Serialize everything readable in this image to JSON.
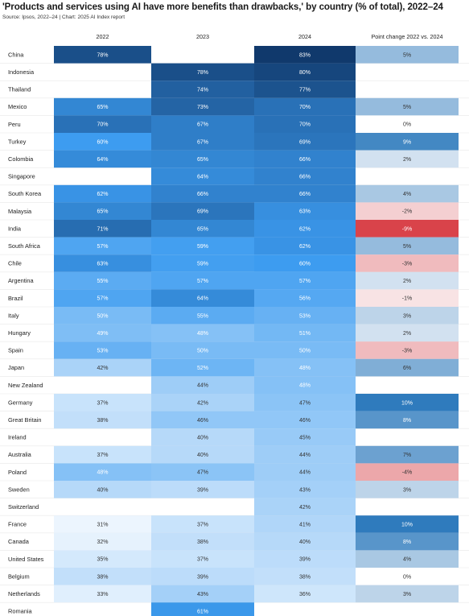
{
  "header": {
    "title": "'Products and services using AI have more benefits than drawbacks,' by country (% of total), 2022–24",
    "source": "Source: Ipsos, 2022–24 | Chart: 2025 AI Index report"
  },
  "chart_data": {
    "type": "heatmap",
    "title": "'Products and services using AI have more benefits than drawbacks,' by country (% of total), 2022–24",
    "columns": [
      "2022",
      "2023",
      "2024",
      "Point change 2022 vs. 2024"
    ],
    "unit": "%",
    "rows": [
      {
        "country": "China",
        "y2022": 78,
        "y2023": null,
        "y2024": 83,
        "change": 5
      },
      {
        "country": "Indonesia",
        "y2022": null,
        "y2023": 78,
        "y2024": 80,
        "change": null
      },
      {
        "country": "Thailand",
        "y2022": null,
        "y2023": 74,
        "y2024": 77,
        "change": null
      },
      {
        "country": "Mexico",
        "y2022": 65,
        "y2023": 73,
        "y2024": 70,
        "change": 5
      },
      {
        "country": "Peru",
        "y2022": 70,
        "y2023": 67,
        "y2024": 70,
        "change": 0
      },
      {
        "country": "Turkey",
        "y2022": 60,
        "y2023": 67,
        "y2024": 69,
        "change": 9
      },
      {
        "country": "Colombia",
        "y2022": 64,
        "y2023": 65,
        "y2024": 66,
        "change": 2
      },
      {
        "country": "Singapore",
        "y2022": null,
        "y2023": 64,
        "y2024": 66,
        "change": null
      },
      {
        "country": "South Korea",
        "y2022": 62,
        "y2023": 66,
        "y2024": 66,
        "change": 4
      },
      {
        "country": "Malaysia",
        "y2022": 65,
        "y2023": 69,
        "y2024": 63,
        "change": -2
      },
      {
        "country": "India",
        "y2022": 71,
        "y2023": 65,
        "y2024": 62,
        "change": -9
      },
      {
        "country": "South Africa",
        "y2022": 57,
        "y2023": 59,
        "y2024": 62,
        "change": 5
      },
      {
        "country": "Chile",
        "y2022": 63,
        "y2023": 59,
        "y2024": 60,
        "change": -3
      },
      {
        "country": "Argentina",
        "y2022": 55,
        "y2023": 57,
        "y2024": 57,
        "change": 2
      },
      {
        "country": "Brazil",
        "y2022": 57,
        "y2023": 64,
        "y2024": 56,
        "change": -1
      },
      {
        "country": "Italy",
        "y2022": 50,
        "y2023": 55,
        "y2024": 53,
        "change": 3
      },
      {
        "country": "Hungary",
        "y2022": 49,
        "y2023": 48,
        "y2024": 51,
        "change": 2
      },
      {
        "country": "Spain",
        "y2022": 53,
        "y2023": 50,
        "y2024": 50,
        "change": -3
      },
      {
        "country": "Japan",
        "y2022": 42,
        "y2023": 52,
        "y2024": 48,
        "change": 6
      },
      {
        "country": "New Zealand",
        "y2022": null,
        "y2023": 44,
        "y2024": 48,
        "change": null
      },
      {
        "country": "Germany",
        "y2022": 37,
        "y2023": 42,
        "y2024": 47,
        "change": 10
      },
      {
        "country": "Great Britain",
        "y2022": 38,
        "y2023": 46,
        "y2024": 46,
        "change": 8
      },
      {
        "country": "Ireland",
        "y2022": null,
        "y2023": 40,
        "y2024": 45,
        "change": null
      },
      {
        "country": "Australia",
        "y2022": 37,
        "y2023": 40,
        "y2024": 44,
        "change": 7
      },
      {
        "country": "Poland",
        "y2022": 48,
        "y2023": 47,
        "y2024": 44,
        "change": -4
      },
      {
        "country": "Sweden",
        "y2022": 40,
        "y2023": 39,
        "y2024": 43,
        "change": 3
      },
      {
        "country": "Switzerland",
        "y2022": null,
        "y2023": null,
        "y2024": 42,
        "change": null
      },
      {
        "country": "France",
        "y2022": 31,
        "y2023": 37,
        "y2024": 41,
        "change": 10
      },
      {
        "country": "Canada",
        "y2022": 32,
        "y2023": 38,
        "y2024": 40,
        "change": 8
      },
      {
        "country": "United States",
        "y2022": 35,
        "y2023": 37,
        "y2024": 39,
        "change": 4
      },
      {
        "country": "Belgium",
        "y2022": 38,
        "y2023": 39,
        "y2024": 38,
        "change": 0
      },
      {
        "country": "Netherlands",
        "y2022": 33,
        "y2023": 43,
        "y2024": 36,
        "change": 3
      },
      {
        "country": "Romania",
        "y2022": null,
        "y2023": 61,
        "y2024": null,
        "change": null
      }
    ],
    "colors": {
      "value_light": "#f2f8fe",
      "value_mid": "#3d9cf0",
      "value_dark": "#0e3566",
      "positive_light": "#e6eef6",
      "positive_dark": "#2f7bbd",
      "negative_light": "#f8e3e4",
      "negative_dark": "#d9434a",
      "text_light": "#ffffff",
      "text_dark": "#333333"
    }
  }
}
